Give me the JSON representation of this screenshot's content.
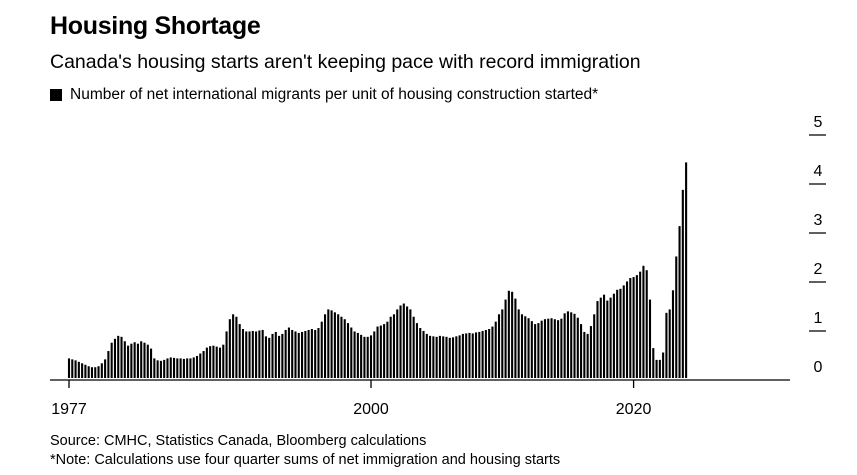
{
  "header": {
    "title": "Housing Shortage",
    "subtitle": "Canada's housing starts aren't keeping pace with record immigration",
    "legend_label": "Number of net international migrants per unit of housing construction started*"
  },
  "footer": {
    "source": "Source: CMHC, Statistics Canada, Bloomberg calculations",
    "note": "*Note: Calculations use four quarter sums of net immigration and housing starts"
  },
  "colors": {
    "bar": "#000000",
    "axis": "#000000",
    "background": "#ffffff"
  },
  "chart_data": {
    "type": "bar",
    "title": "Housing Shortage",
    "subtitle": "Canada's housing starts aren't keeping pace with record immigration",
    "series": [
      {
        "name": "Number of net international migrants per unit of housing construction started*"
      }
    ],
    "x_start": 1977.0,
    "x_step": 0.25,
    "x_ticks": [
      "1977",
      "2000",
      "2020"
    ],
    "x_tick_values": [
      1977,
      2000,
      2020
    ],
    "y_ticks": [
      "0",
      "1",
      "2",
      "3",
      "4",
      "5"
    ],
    "ylim": [
      0,
      5
    ],
    "grid": false,
    "values": [
      0.4,
      0.38,
      0.36,
      0.33,
      0.3,
      0.27,
      0.24,
      0.22,
      0.22,
      0.24,
      0.3,
      0.38,
      0.55,
      0.72,
      0.8,
      0.86,
      0.84,
      0.75,
      0.66,
      0.7,
      0.73,
      0.7,
      0.75,
      0.72,
      0.68,
      0.6,
      0.4,
      0.36,
      0.35,
      0.37,
      0.4,
      0.42,
      0.41,
      0.4,
      0.4,
      0.39,
      0.4,
      0.4,
      0.42,
      0.45,
      0.5,
      0.55,
      0.62,
      0.65,
      0.66,
      0.64,
      0.62,
      0.68,
      0.95,
      1.2,
      1.3,
      1.25,
      1.1,
      1.0,
      0.95,
      0.95,
      0.96,
      0.95,
      0.97,
      0.98,
      0.85,
      0.82,
      0.9,
      0.94,
      0.86,
      0.9,
      0.98,
      1.03,
      0.98,
      0.95,
      0.92,
      0.94,
      0.96,
      0.98,
      1.0,
      0.98,
      1.02,
      1.15,
      1.3,
      1.4,
      1.38,
      1.34,
      1.3,
      1.25,
      1.2,
      1.12,
      1.03,
      0.95,
      0.92,
      0.88,
      0.84,
      0.84,
      0.87,
      0.95,
      1.05,
      1.07,
      1.1,
      1.15,
      1.25,
      1.3,
      1.4,
      1.48,
      1.52,
      1.46,
      1.4,
      1.25,
      1.12,
      1.02,
      0.96,
      0.9,
      0.86,
      0.85,
      0.84,
      0.86,
      0.85,
      0.84,
      0.82,
      0.83,
      0.85,
      0.87,
      0.9,
      0.91,
      0.92,
      0.91,
      0.93,
      0.94,
      0.96,
      0.98,
      1.0,
      1.05,
      1.15,
      1.3,
      1.4,
      1.6,
      1.78,
      1.76,
      1.62,
      1.4,
      1.3,
      1.26,
      1.22,
      1.16,
      1.1,
      1.12,
      1.17,
      1.2,
      1.21,
      1.22,
      1.2,
      1.18,
      1.21,
      1.32,
      1.36,
      1.34,
      1.31,
      1.23,
      1.1,
      0.94,
      0.9,
      1.06,
      1.3,
      1.57,
      1.64,
      1.7,
      1.58,
      1.64,
      1.72,
      1.8,
      1.82,
      1.89,
      1.97,
      2.04,
      2.06,
      2.1,
      2.17,
      2.29,
      2.2,
      1.6,
      0.61,
      0.37,
      0.37,
      0.52,
      1.33,
      1.4,
      1.79,
      2.48,
      3.1,
      3.84,
      4.4
    ]
  }
}
